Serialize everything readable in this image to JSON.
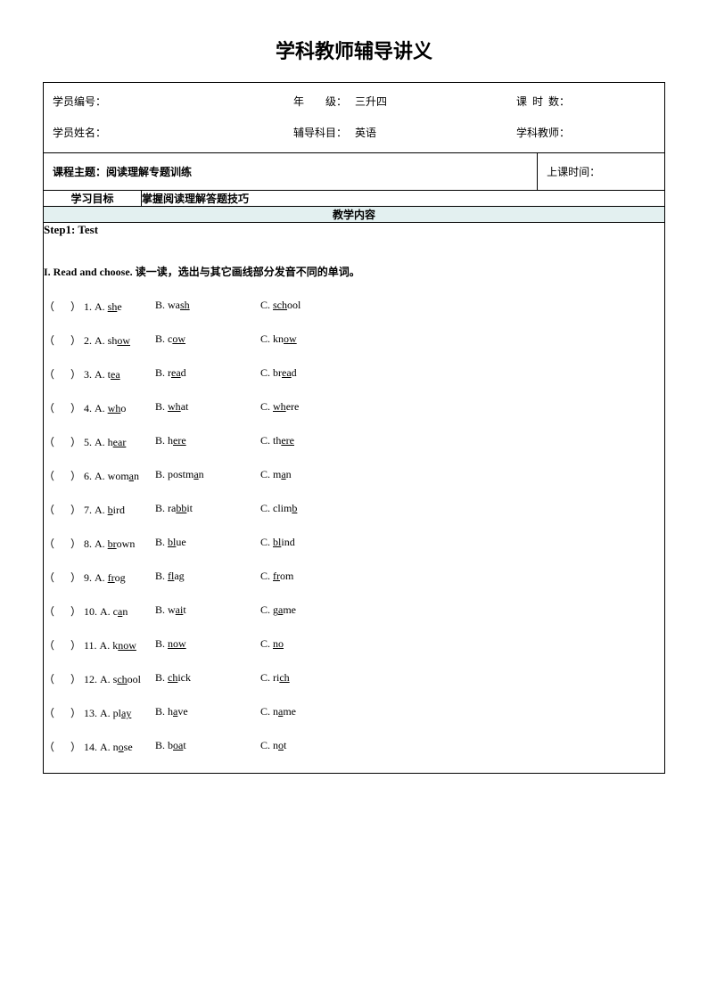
{
  "title": "学科教师辅导讲义",
  "info": {
    "student_id_label": "学员编号：",
    "grade_label1": "年",
    "grade_label2": "级：",
    "grade_value": "三升四",
    "hours_label1": "课",
    "hours_label2": "时",
    "hours_label3": "数：",
    "student_name_label": "学员姓名：",
    "subject_label": "辅导科目：",
    "subject_value": "英语",
    "teacher_label": "学科教师："
  },
  "row2": {
    "topic_label": "课程主题：",
    "topic_value": "阅读理解专题训练",
    "time_label": "上课时间："
  },
  "row3": {
    "goal_label": "学习目标",
    "goal_value": "掌握阅读理解答题技巧"
  },
  "teach_header": "教学内容",
  "step_title": "Step1: Test",
  "section_instr_bold": "I. Read and choose. ",
  "section_instr_rest": "读一读，选出与其它画线部分发音不同的单词。",
  "questions": [
    {
      "n": "1",
      "a_pre": "",
      "a_ul": "sh",
      "a_post": "e",
      "b_pre": "wa",
      "b_ul": "sh",
      "b_post": "",
      "c_pre": "",
      "c_ul": "sch",
      "c_post": "ool"
    },
    {
      "n": "2",
      "a_pre": "sh",
      "a_ul": "ow",
      "a_post": "",
      "b_pre": "c",
      "b_ul": "ow",
      "b_post": "",
      "c_pre": "kn",
      "c_ul": "ow",
      "c_post": ""
    },
    {
      "n": "3",
      "a_pre": "t",
      "a_ul": "ea",
      "a_post": "",
      "b_pre": "r",
      "b_ul": "ea",
      "b_post": "d",
      "c_pre": "br",
      "c_ul": "ea",
      "c_post": "d"
    },
    {
      "n": "4",
      "a_pre": "",
      "a_ul": "wh",
      "a_post": "o",
      "b_pre": "",
      "b_ul": "wh",
      "b_post": "at",
      "c_pre": "",
      "c_ul": "wh",
      "c_post": "ere"
    },
    {
      "n": "5",
      "a_pre": "h",
      "a_ul": "ear",
      "a_post": "",
      "b_pre": "h",
      "b_ul": "ere",
      "b_post": "",
      "c_pre": "th",
      "c_ul": "ere",
      "c_post": ""
    },
    {
      "n": "6",
      "a_pre": "wom",
      "a_ul": "a",
      "a_post": "n",
      "b_pre": "postm",
      "b_ul": "a",
      "b_post": "n",
      "c_pre": "m",
      "c_ul": "a",
      "c_post": "n"
    },
    {
      "n": "7",
      "a_pre": "",
      "a_ul": "b",
      "a_post": "ird",
      "b_pre": "ra",
      "b_ul": "bb",
      "b_post": "it",
      "c_pre": "clim",
      "c_ul": "b",
      "c_post": ""
    },
    {
      "n": "8",
      "a_pre": "",
      "a_ul": "br",
      "a_post": "own",
      "b_pre": "",
      "b_ul": "bl",
      "b_post": "ue",
      "c_pre": "",
      "c_ul": "bl",
      "c_post": "ind"
    },
    {
      "n": "9",
      "a_pre": "",
      "a_ul": "fr",
      "a_post": "og",
      "b_pre": "",
      "b_ul": "fl",
      "b_post": "ag",
      "c_pre": "",
      "c_ul": "fr",
      "c_post": "om"
    },
    {
      "n": "10",
      "a_pre": "c",
      "a_ul": "a",
      "a_post": "n",
      "b_pre": "w",
      "b_ul": "ai",
      "b_post": "t",
      "c_pre": "g",
      "c_ul": "a",
      "c_post": "me"
    },
    {
      "n": "11",
      "a_pre": "k",
      "a_ul": "now",
      "a_post": "",
      "b_pre": "",
      "b_ul": "now",
      "b_post": "",
      "c_pre": "",
      "c_ul": "no",
      "c_post": ""
    },
    {
      "n": "12",
      "a_pre": "s",
      "a_ul": "ch",
      "a_post": "ool",
      "b_pre": "",
      "b_ul": "ch",
      "b_post": "ick",
      "c_pre": "ri",
      "c_ul": "ch",
      "c_post": ""
    },
    {
      "n": "13",
      "a_pre": "pl",
      "a_ul": "ay",
      "a_post": "",
      "b_pre": "h",
      "b_ul": "a",
      "b_post": "ve",
      "c_pre": "n",
      "c_ul": "a",
      "c_post": "me"
    },
    {
      "n": "14",
      "a_pre": "n",
      "a_ul": "o",
      "a_post": "se",
      "b_pre": "b",
      "b_ul": "oa",
      "b_post": "t",
      "c_pre": "n",
      "c_ul": "o",
      "c_post": "t"
    }
  ],
  "paren_open": "（",
  "paren_close": "）",
  "opt_a": "A. ",
  "opt_b": "B. ",
  "opt_c": "C. "
}
